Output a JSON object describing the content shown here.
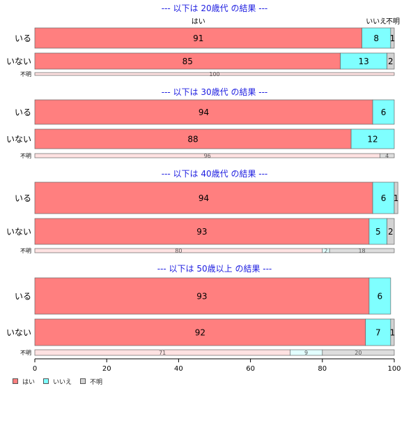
{
  "chart_data": {
    "type": "bar",
    "orientation": "horizontal",
    "stacked": "100%",
    "xlim": [
      0,
      100
    ],
    "x_ticks": [
      "0",
      "20",
      "40",
      "60",
      "80",
      "100"
    ],
    "legend_position": "bottom-left",
    "series": [
      {
        "name": "はい",
        "color": "#FF7F7F"
      },
      {
        "name": "いいえ",
        "color": "#7FFFFF"
      },
      {
        "name": "不明",
        "color": "#D3D3D3"
      }
    ],
    "panels": [
      {
        "title": "--- 以下は 20歳代 の結果 ---",
        "top_labels": [
          "はい",
          "いいえ",
          "不明"
        ],
        "rows": [
          {
            "label": "いる",
            "values": [
              91,
              8,
              1
            ],
            "value_labels": [
              "91",
              "8",
              "1"
            ]
          },
          {
            "label": "いない",
            "values": [
              85,
              13,
              2
            ],
            "value_labels": [
              "85",
              "13",
              "2"
            ]
          },
          {
            "label": "不明",
            "values": [
              100,
              0,
              0
            ],
            "value_labels": [
              "100",
              "",
              ""
            ]
          }
        ]
      },
      {
        "title": "--- 以下は 30歳代 の結果 ---",
        "top_labels": [],
        "rows": [
          {
            "label": "いる",
            "values": [
              94,
              6,
              0
            ],
            "value_labels": [
              "94",
              "6",
              ""
            ]
          },
          {
            "label": "いない",
            "values": [
              88,
              12,
              0
            ],
            "value_labels": [
              "88",
              "12",
              ""
            ]
          },
          {
            "label": "不明",
            "values": [
              96,
              0,
              4
            ],
            "value_labels": [
              "96",
              "",
              "4"
            ]
          }
        ]
      },
      {
        "title": "--- 以下は 40歳代 の結果 ---",
        "top_labels": [],
        "rows": [
          {
            "label": "いる",
            "values": [
              94,
              6,
              1
            ],
            "value_labels": [
              "94",
              "6",
              "1"
            ]
          },
          {
            "label": "いない",
            "values": [
              93,
              5,
              2
            ],
            "value_labels": [
              "93",
              "5",
              "2"
            ]
          },
          {
            "label": "不明",
            "values": [
              80,
              2,
              18
            ],
            "value_labels": [
              "80",
              "2",
              "18"
            ]
          }
        ]
      },
      {
        "title": "--- 以下は 50歳以上 の結果 ---",
        "top_labels": [],
        "rows": [
          {
            "label": "いる",
            "values": [
              93,
              6,
              0
            ],
            "value_labels": [
              "93",
              "6",
              ""
            ]
          },
          {
            "label": "いない",
            "values": [
              92,
              7,
              1
            ],
            "value_labels": [
              "92",
              "7",
              "1"
            ]
          },
          {
            "label": "不明",
            "values": [
              71,
              9,
              20
            ],
            "value_labels": [
              "71",
              "9",
              "20"
            ]
          }
        ]
      }
    ]
  }
}
